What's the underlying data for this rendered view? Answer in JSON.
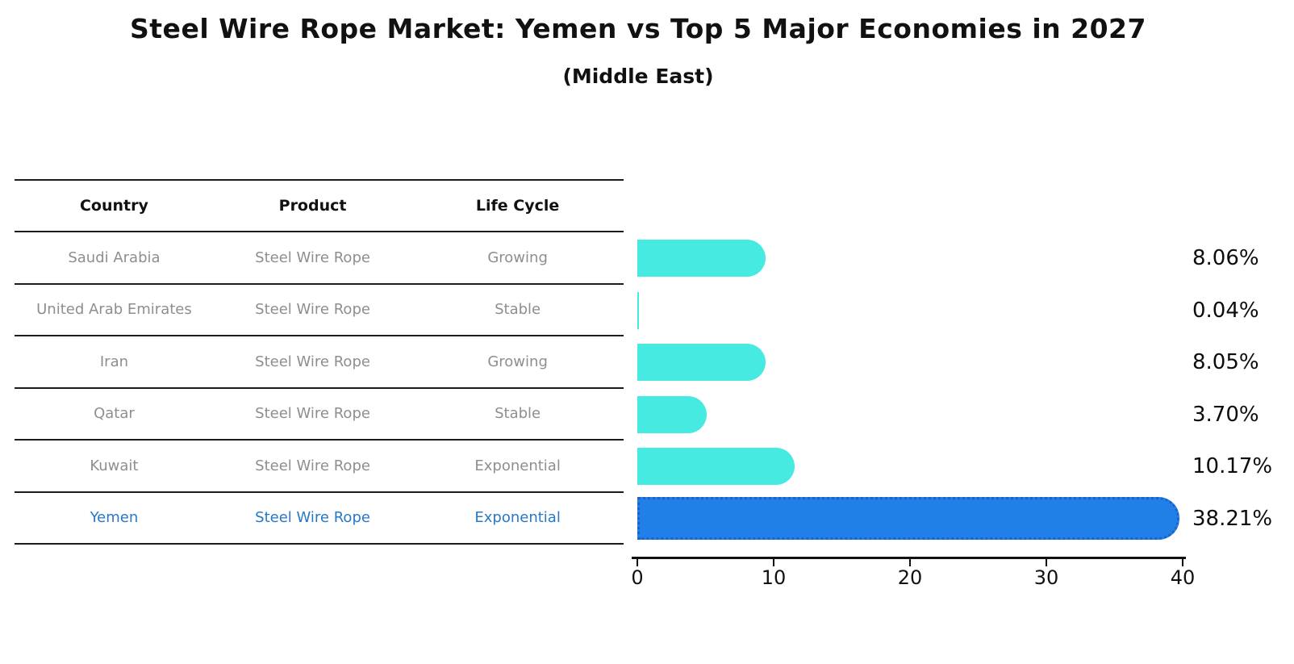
{
  "title": "Steel Wire Rope Market: Yemen vs Top 5 Major Economies in 2027",
  "subtitle": "(Middle East)",
  "table": {
    "headers": [
      "Country",
      "Product",
      "Life Cycle"
    ],
    "rows": [
      {
        "country": "Saudi Arabia",
        "product": "Steel Wire Rope",
        "life_cycle": "Growing",
        "highlight": false
      },
      {
        "country": "United Arab Emirates",
        "product": "Steel Wire Rope",
        "life_cycle": "Stable",
        "highlight": false
      },
      {
        "country": "Iran",
        "product": "Steel Wire Rope",
        "life_cycle": "Growing",
        "highlight": false
      },
      {
        "country": "Qatar",
        "product": "Steel Wire Rope",
        "life_cycle": "Stable",
        "highlight": false
      },
      {
        "country": "Kuwait",
        "product": "Steel Wire Rope",
        "life_cycle": "Exponential",
        "highlight": false
      },
      {
        "country": "Yemen",
        "product": "Steel Wire Rope",
        "life_cycle": "Exponential",
        "highlight": true
      }
    ]
  },
  "chart_data": {
    "type": "bar",
    "orientation": "horizontal",
    "categories": [
      "Saudi Arabia",
      "United Arab Emirates",
      "Iran",
      "Qatar",
      "Kuwait",
      "Yemen"
    ],
    "values": [
      8.06,
      0.04,
      8.05,
      3.7,
      10.17,
      38.21
    ],
    "value_labels": [
      "8.06%",
      "0.04%",
      "8.05%",
      "3.70%",
      "10.17%",
      "38.21%"
    ],
    "highlight_index": 5,
    "xlim": [
      0,
      40
    ],
    "x_ticks": [
      "0",
      "10",
      "20",
      "30",
      "40"
    ],
    "grid": false,
    "legend": "none",
    "bar_color": "#46EAE1",
    "highlight_bar_color": "#2080E8",
    "highlight_border_color": "#1E62C4",
    "highlight_text_color": "#2878c8",
    "title": "Steel Wire Rope Market: Yemen vs Top 5 Major Economies in 2027",
    "subtitle": "(Middle East)"
  }
}
